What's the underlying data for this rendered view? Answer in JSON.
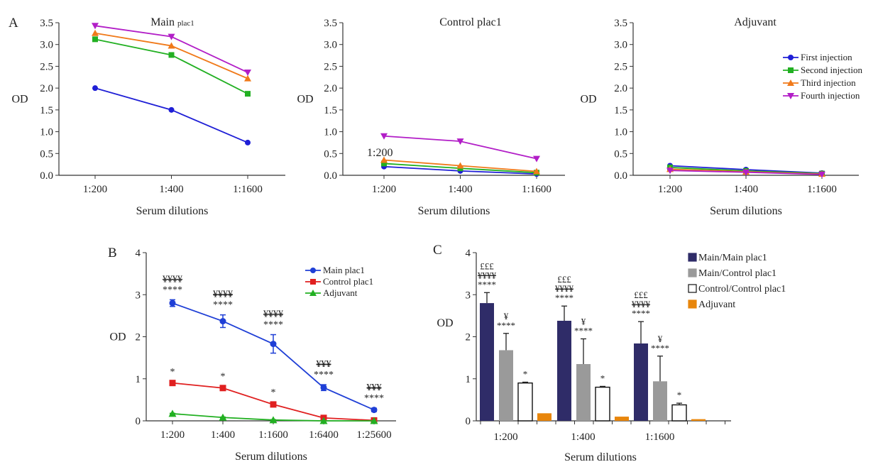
{
  "panel_labels": {
    "a": "A",
    "b": "B",
    "c": "C"
  },
  "chart_data": [
    {
      "type": "line",
      "title": "Main",
      "title_sub": "plac1",
      "xlabel": "Serum dilutions",
      "ylabel": "OD",
      "categories": [
        "1:200",
        "1:400",
        "1:1600"
      ],
      "ylim": [
        0,
        3.5
      ],
      "yticks": [
        "0.0",
        "0.5",
        "1.0",
        "1.5",
        "2.0",
        "2.5",
        "3.0",
        "3.5"
      ],
      "series": [
        {
          "name": "First injection",
          "values": [
            2.0,
            1.5,
            0.75
          ],
          "color": "#1f1fd6",
          "marker": "circle"
        },
        {
          "name": "Second injection",
          "values": [
            3.12,
            2.76,
            1.87
          ],
          "color": "#22b022",
          "marker": "square"
        },
        {
          "name": "Third injection",
          "values": [
            3.26,
            2.97,
            2.22
          ],
          "color": "#f07a1a",
          "marker": "triangle-up"
        },
        {
          "name": "Fourth injection",
          "values": [
            3.43,
            3.18,
            2.36
          ],
          "color": "#b21ec7",
          "marker": "triangle-down"
        }
      ]
    },
    {
      "type": "line",
      "title": "Control plac1",
      "annotation": "1:200",
      "xlabel": "Serum dilutions",
      "ylabel": "OD",
      "categories": [
        "1:200",
        "1:400",
        "1:1600"
      ],
      "ylim": [
        0,
        3.5
      ],
      "yticks": [
        "0.0",
        "0.5",
        "1.0",
        "1.5",
        "2.0",
        "2.5",
        "3.0",
        "3.5"
      ],
      "series": [
        {
          "name": "First injection",
          "values": [
            0.2,
            0.1,
            0.03
          ],
          "color": "#1f1fd6",
          "marker": "circle"
        },
        {
          "name": "Second injection",
          "values": [
            0.27,
            0.16,
            0.06
          ],
          "color": "#22b022",
          "marker": "square"
        },
        {
          "name": "Third injection",
          "values": [
            0.35,
            0.22,
            0.09
          ],
          "color": "#f07a1a",
          "marker": "triangle-up"
        },
        {
          "name": "Fourth injection",
          "values": [
            0.9,
            0.78,
            0.38
          ],
          "color": "#b21ec7",
          "marker": "triangle-down"
        }
      ]
    },
    {
      "type": "line",
      "title": "Adjuvant",
      "xlabel": "Serum dilutions",
      "ylabel": "OD",
      "categories": [
        "1:200",
        "1:400",
        "1:1600"
      ],
      "ylim": [
        0,
        3.5
      ],
      "yticks": [
        "0.0",
        "0.5",
        "1.0",
        "1.5",
        "2.0",
        "2.5",
        "3.0",
        "3.5"
      ],
      "legend": "top-right",
      "series": [
        {
          "name": "First injection",
          "values": [
            0.22,
            0.13,
            0.05
          ],
          "color": "#1f1fd6",
          "marker": "circle"
        },
        {
          "name": "Second injection",
          "values": [
            0.18,
            0.1,
            0.04
          ],
          "color": "#22b022",
          "marker": "square"
        },
        {
          "name": "Third injection",
          "values": [
            0.14,
            0.08,
            0.03
          ],
          "color": "#f07a1a",
          "marker": "triangle-up"
        },
        {
          "name": "Fourth injection",
          "values": [
            0.11,
            0.07,
            0.02
          ],
          "color": "#b21ec7",
          "marker": "triangle-down"
        }
      ]
    },
    {
      "type": "line",
      "xlabel": "Serum dilutions",
      "ylabel": "OD",
      "categories": [
        "1:200",
        "1:400",
        "1:1600",
        "1:6400",
        "1:25600"
      ],
      "ylim": [
        0,
        4
      ],
      "yticks": [
        "0",
        "1",
        "2",
        "3",
        "4"
      ],
      "legend": "top-right",
      "series": [
        {
          "name": "Main plac1",
          "values": [
            2.8,
            2.37,
            1.83,
            0.79,
            0.26
          ],
          "errors": [
            0.08,
            0.15,
            0.22,
            0.07,
            0.04
          ],
          "color": "#1f3fd6",
          "marker": "circle",
          "annotations": [
            [
              "¥¥¥¥",
              "****"
            ],
            [
              "¥¥¥¥",
              "****"
            ],
            [
              "¥¥¥¥",
              "****"
            ],
            [
              "¥¥¥",
              "****"
            ],
            [
              "¥¥¥",
              "****"
            ]
          ]
        },
        {
          "name": "Control plac1",
          "values": [
            0.9,
            0.78,
            0.39,
            0.07,
            0.01
          ],
          "errors": [
            0.03,
            0.04,
            0.05,
            0.02,
            0.01
          ],
          "color": "#e02020",
          "marker": "square",
          "annotations": [
            [
              "*"
            ],
            [
              "*"
            ],
            [
              "*"
            ],
            [],
            []
          ]
        },
        {
          "name": "Adjuvant",
          "values": [
            0.17,
            0.08,
            0.02,
            0.0,
            0.0
          ],
          "errors": [
            0.01,
            0.01,
            0.01,
            0.0,
            0.0
          ],
          "color": "#22b022",
          "marker": "triangle-up",
          "annotations": [
            [],
            [],
            [],
            [],
            []
          ]
        }
      ]
    },
    {
      "type": "bar",
      "xlabel": "Serum dilutions",
      "ylabel": "OD",
      "categories": [
        "1:200",
        "1:400",
        "1:1600"
      ],
      "ylim": [
        0,
        4
      ],
      "yticks": [
        "0",
        "1",
        "2",
        "3",
        "4"
      ],
      "legend": "top-right",
      "series": [
        {
          "name": "Main/Main plac1",
          "values": [
            2.8,
            2.38,
            1.84
          ],
          "errors": [
            0.25,
            0.35,
            0.52
          ],
          "color": "#2f2c68",
          "annotations": [
            [
              "£££",
              "¥¥¥¥",
              "****"
            ],
            [
              "£££",
              "¥¥¥¥",
              "****"
            ],
            [
              "£££",
              "¥¥¥¥",
              "****"
            ]
          ]
        },
        {
          "name": "Main/Control plac1",
          "values": [
            1.68,
            1.35,
            0.94
          ],
          "errors": [
            0.4,
            0.6,
            0.6
          ],
          "color": "#9a9a9a",
          "annotations": [
            [
              "¥",
              "****"
            ],
            [
              "¥",
              "****"
            ],
            [
              "¥",
              "****"
            ]
          ]
        },
        {
          "name": "Control/Control plac1",
          "values": [
            0.9,
            0.8,
            0.38
          ],
          "errors": [
            0.02,
            0.02,
            0.04
          ],
          "color": "#ffffff",
          "annotations": [
            [
              "*"
            ],
            [
              "*"
            ],
            [
              "*"
            ]
          ]
        },
        {
          "name": "Adjuvant",
          "values": [
            0.18,
            0.1,
            0.04
          ],
          "errors": [
            0,
            0,
            0
          ],
          "color": "#e8860c",
          "annotations": [
            [],
            [],
            []
          ]
        }
      ]
    }
  ]
}
